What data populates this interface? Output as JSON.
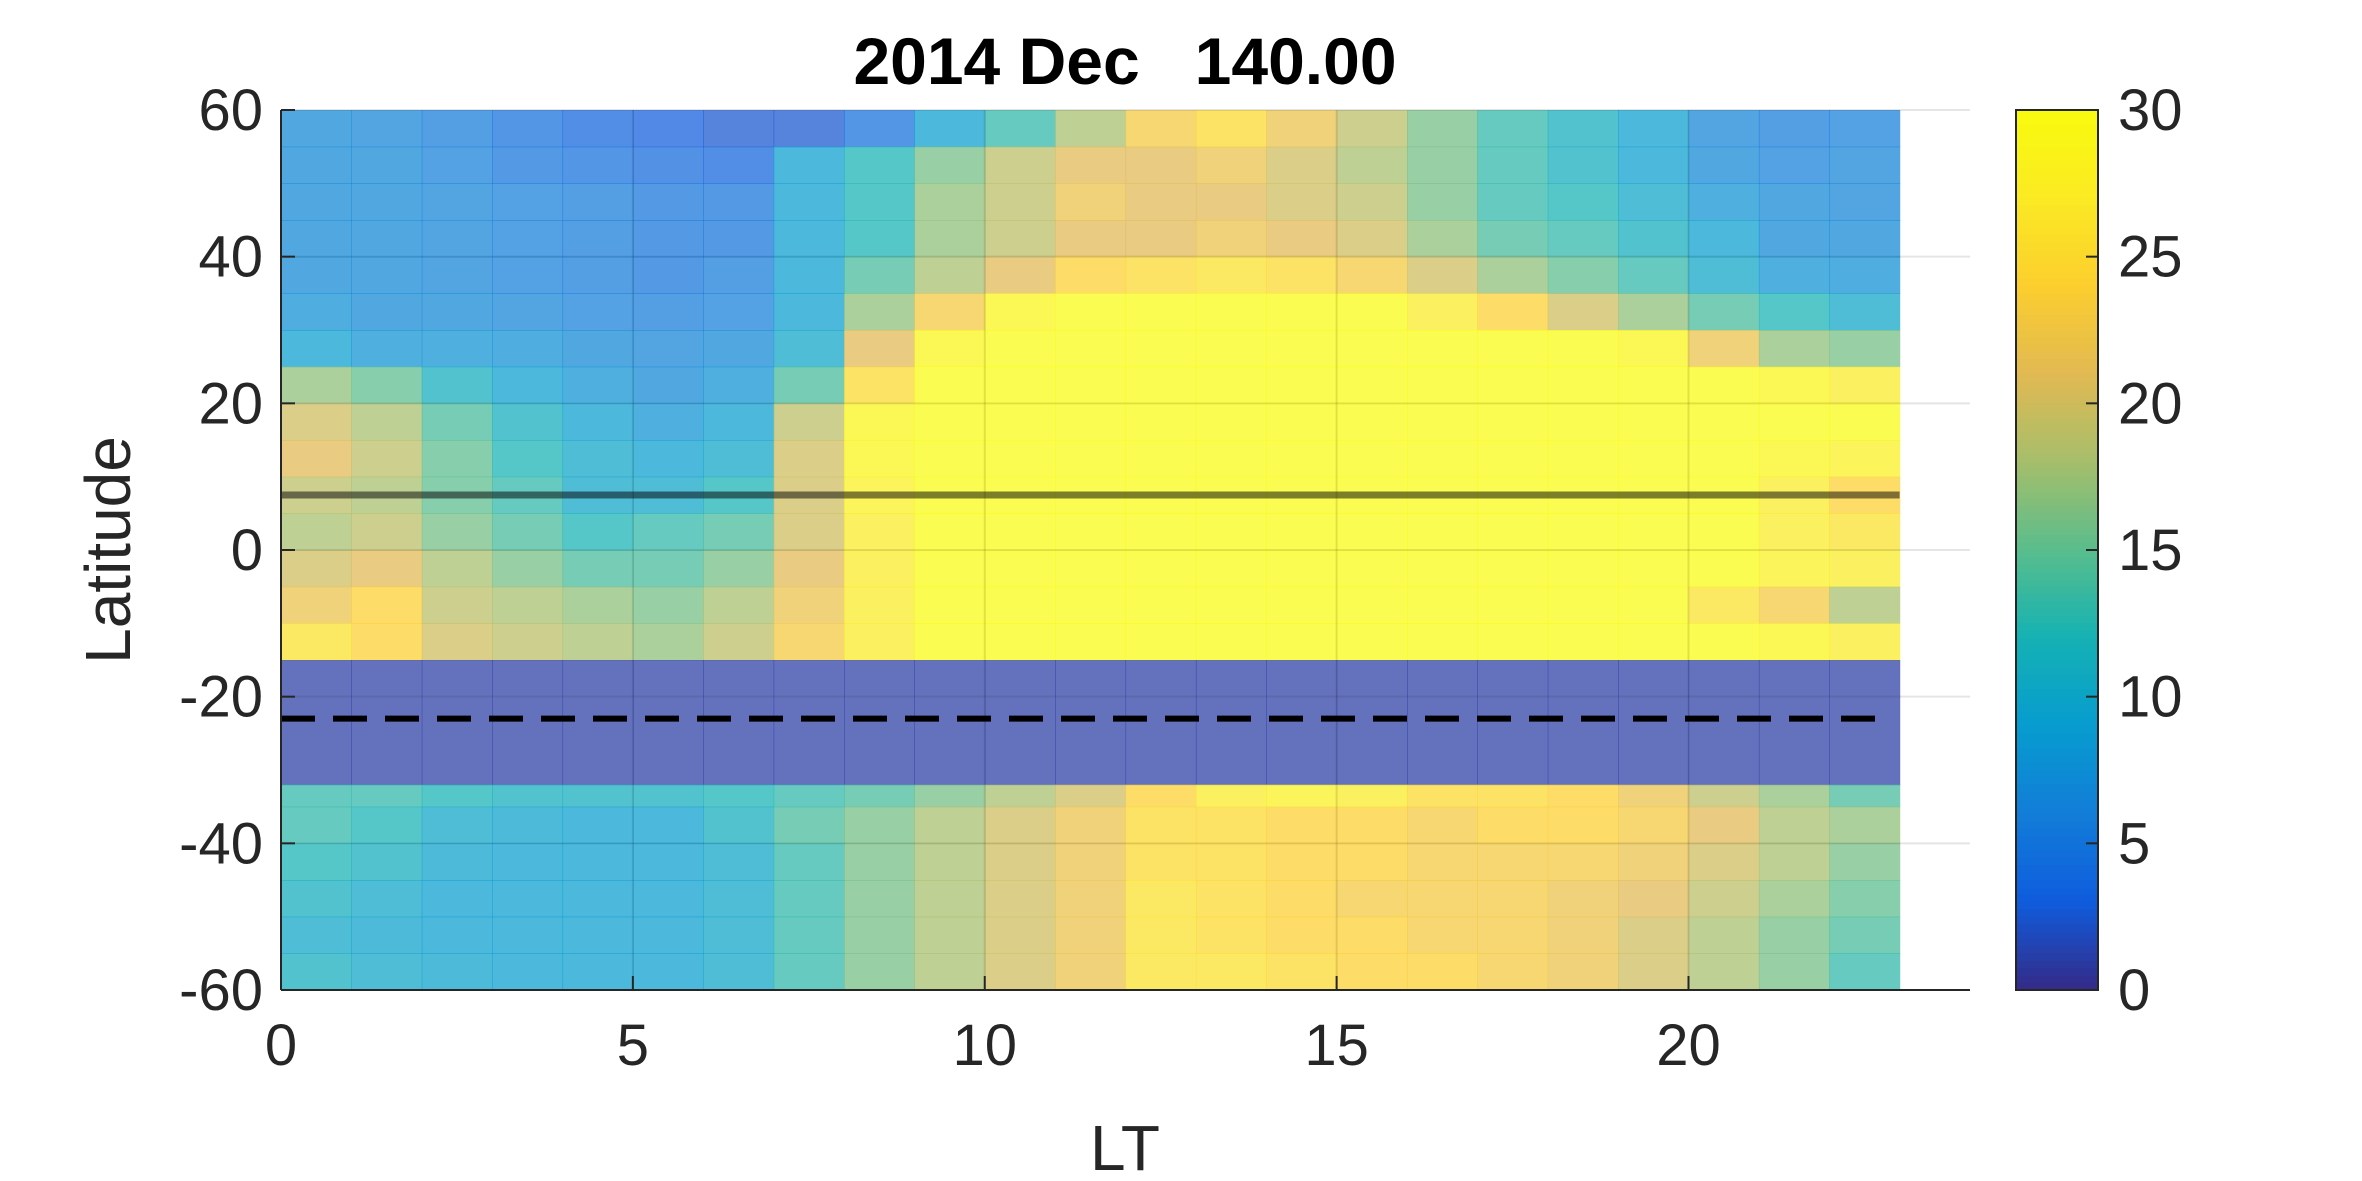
{
  "chart_data": {
    "type": "heatmap",
    "title": "2014 Dec   140.00",
    "xlabel": "LT",
    "ylabel": "Latitude",
    "xlim": [
      0,
      24
    ],
    "ylim": [
      -60,
      60
    ],
    "x_ticks": [
      "0",
      "5",
      "10",
      "15",
      "20"
    ],
    "x_tick_values": [
      0,
      5,
      10,
      15,
      20
    ],
    "y_ticks": [
      "60",
      "40",
      "20",
      "0",
      "-20",
      "-40",
      "-60"
    ],
    "y_tick_values": [
      60,
      40,
      20,
      0,
      -20,
      -40,
      -60
    ],
    "grid": true,
    "colorbar": {
      "limits": [
        0,
        30
      ],
      "ticks": [
        "30",
        "25",
        "20",
        "15",
        "10",
        "5",
        "0"
      ],
      "tick_values": [
        30,
        25,
        20,
        15,
        10,
        5,
        0
      ],
      "colormap": "parula"
    },
    "cell_edges_lt": [
      0,
      1,
      2,
      3,
      4,
      5,
      6,
      7,
      8,
      9,
      10,
      11,
      12,
      13,
      14,
      15,
      16,
      17,
      18,
      19,
      20,
      21,
      22,
      23
    ],
    "x_max_data": 23,
    "latitude_bands": [
      {
        "lat": [
          55,
          60
        ],
        "values": [
          7,
          6.5,
          5.5,
          4.5,
          3.5,
          3,
          2.5,
          2.5,
          4.5,
          9,
          13,
          18,
          23,
          25,
          22,
          19,
          16,
          13,
          11,
          9,
          6.5,
          5.5,
          6
        ]
      },
      {
        "lat": [
          50,
          55
        ],
        "values": [
          7,
          7,
          6,
          5,
          4.5,
          4,
          3.5,
          9,
          12,
          16,
          19,
          21,
          21,
          22,
          20,
          18,
          16,
          13,
          11,
          9,
          7,
          6,
          6.5
        ]
      },
      {
        "lat": [
          45,
          50
        ],
        "values": [
          7,
          7,
          6.5,
          6,
          5.5,
          5,
          5,
          9,
          12,
          17,
          19,
          22,
          21,
          21,
          20,
          19,
          16,
          13,
          12,
          10,
          8,
          7,
          6.5
        ]
      },
      {
        "lat": [
          40,
          45
        ],
        "values": [
          7,
          7,
          6.5,
          6,
          5.5,
          5,
          5,
          9,
          12,
          17,
          19,
          21,
          21,
          22,
          21,
          20,
          17,
          14,
          13,
          11,
          9,
          7,
          7
        ]
      },
      {
        "lat": [
          35,
          40
        ],
        "values": [
          7,
          7,
          6.5,
          6,
          5.5,
          5,
          5.5,
          9,
          14,
          18,
          21,
          24,
          25,
          26,
          25,
          23,
          20,
          17,
          15,
          13,
          10,
          8,
          7.5
        ]
      },
      {
        "lat": [
          30,
          35
        ],
        "values": [
          7.5,
          7,
          7,
          6.5,
          6,
          5.5,
          6,
          9,
          17,
          23,
          29,
          30,
          30,
          30,
          30,
          30,
          27,
          24,
          20,
          17,
          14,
          12,
          10
        ]
      },
      {
        "lat": [
          25,
          30
        ],
        "values": [
          9,
          8,
          8,
          7.5,
          7,
          6.5,
          7,
          10,
          21,
          29,
          30,
          30,
          30,
          30,
          30,
          30,
          30,
          30,
          30,
          29,
          22,
          17,
          16
        ]
      },
      {
        "lat": [
          20,
          25
        ],
        "values": [
          17,
          15,
          11,
          9,
          8,
          7,
          8,
          14,
          25,
          30,
          30,
          30,
          30,
          30,
          30,
          30,
          30,
          30,
          30,
          30,
          30,
          29,
          27
        ]
      },
      {
        "lat": [
          15,
          20
        ],
        "values": [
          20,
          18,
          14,
          11,
          9,
          8,
          9,
          19,
          29,
          30,
          30,
          30,
          30,
          30,
          30,
          30,
          30,
          30,
          30,
          30,
          30,
          30,
          30
        ]
      },
      {
        "lat": [
          10,
          15
        ],
        "values": [
          21,
          19,
          15,
          12,
          10,
          9,
          10,
          20,
          29,
          30,
          30,
          30,
          30,
          30,
          30,
          30,
          30,
          30,
          30,
          30,
          30,
          29,
          28
        ]
      },
      {
        "lat": [
          5,
          10
        ],
        "values": [
          19,
          18,
          15,
          13,
          10,
          10,
          12,
          20,
          28,
          30,
          30,
          30,
          30,
          30,
          30,
          30,
          30,
          30,
          30,
          30,
          30,
          27,
          24
        ]
      },
      {
        "lat": [
          0,
          5
        ],
        "values": [
          18,
          19,
          16,
          14,
          12,
          13,
          14,
          20,
          27,
          30,
          30,
          30,
          30,
          30,
          30,
          30,
          30,
          30,
          30,
          30,
          30,
          27,
          26
        ]
      },
      {
        "lat": [
          -5,
          0
        ],
        "values": [
          20,
          21,
          18,
          16,
          14,
          14,
          16,
          21,
          27,
          30,
          30,
          30,
          30,
          30,
          30,
          30,
          30,
          30,
          30,
          30,
          30,
          28,
          27
        ]
      },
      {
        "lat": [
          -10,
          -5
        ],
        "values": [
          22,
          24,
          19,
          18,
          17,
          16,
          18,
          22,
          27,
          30,
          30,
          30,
          30,
          30,
          30,
          30,
          30,
          30,
          30,
          30,
          26,
          23,
          18
        ]
      },
      {
        "lat": [
          -15,
          -10
        ],
        "values": [
          26,
          24,
          20,
          19,
          18,
          17,
          19,
          23,
          27,
          30,
          30,
          30,
          30,
          30,
          30,
          30,
          30,
          30,
          30,
          30,
          30,
          29,
          27
        ]
      },
      {
        "lat": [
          -32,
          -15
        ],
        "values": [
          1,
          1,
          1,
          1,
          1,
          1,
          1,
          1,
          1,
          1,
          1,
          1,
          1,
          1,
          1,
          1,
          1,
          1,
          1,
          1,
          1,
          1,
          1
        ]
      },
      {
        "lat": [
          -35,
          -32
        ],
        "values": [
          13,
          13,
          12,
          11,
          11,
          11,
          12,
          13,
          14,
          16,
          18,
          20,
          24,
          27,
          28,
          27,
          25,
          25,
          24,
          22,
          19,
          17,
          14
        ]
      },
      {
        "lat": [
          -40,
          -35
        ],
        "values": [
          13,
          12,
          10,
          9.5,
          9,
          9,
          11,
          14,
          16,
          18,
          20,
          22,
          25,
          25,
          24,
          24,
          23,
          24,
          24,
          23,
          21,
          18,
          17
        ]
      },
      {
        "lat": [
          -45,
          -40
        ],
        "values": [
          12,
          11,
          9.5,
          9,
          9,
          9,
          10,
          13,
          16,
          18,
          20,
          22,
          25,
          25,
          24,
          24,
          23,
          23,
          23,
          22,
          20,
          18,
          16
        ]
      },
      {
        "lat": [
          -50,
          -45
        ],
        "values": [
          11,
          10,
          9,
          9,
          9,
          9,
          10,
          13,
          16,
          18,
          20,
          22,
          26,
          25,
          24,
          23,
          23,
          23,
          22,
          21,
          19,
          17,
          15
        ]
      },
      {
        "lat": [
          -55,
          -50
        ],
        "values": [
          10,
          9.5,
          9,
          9,
          9,
          9,
          10,
          13,
          16,
          18,
          20,
          22,
          26,
          25,
          24,
          24,
          23,
          23,
          22,
          20,
          18,
          16,
          14
        ]
      },
      {
        "lat": [
          -60,
          -55
        ],
        "values": [
          11,
          10,
          9.5,
          9,
          9,
          9,
          10,
          13,
          16,
          18,
          20,
          22,
          26,
          26,
          25,
          24,
          24,
          23,
          22,
          20,
          18,
          16,
          13
        ]
      }
    ],
    "reference_lines": [
      {
        "style": "solid",
        "lat": 7.5,
        "color": "#000000"
      },
      {
        "style": "dashed",
        "lat": -23,
        "color": "#000000"
      }
    ]
  }
}
